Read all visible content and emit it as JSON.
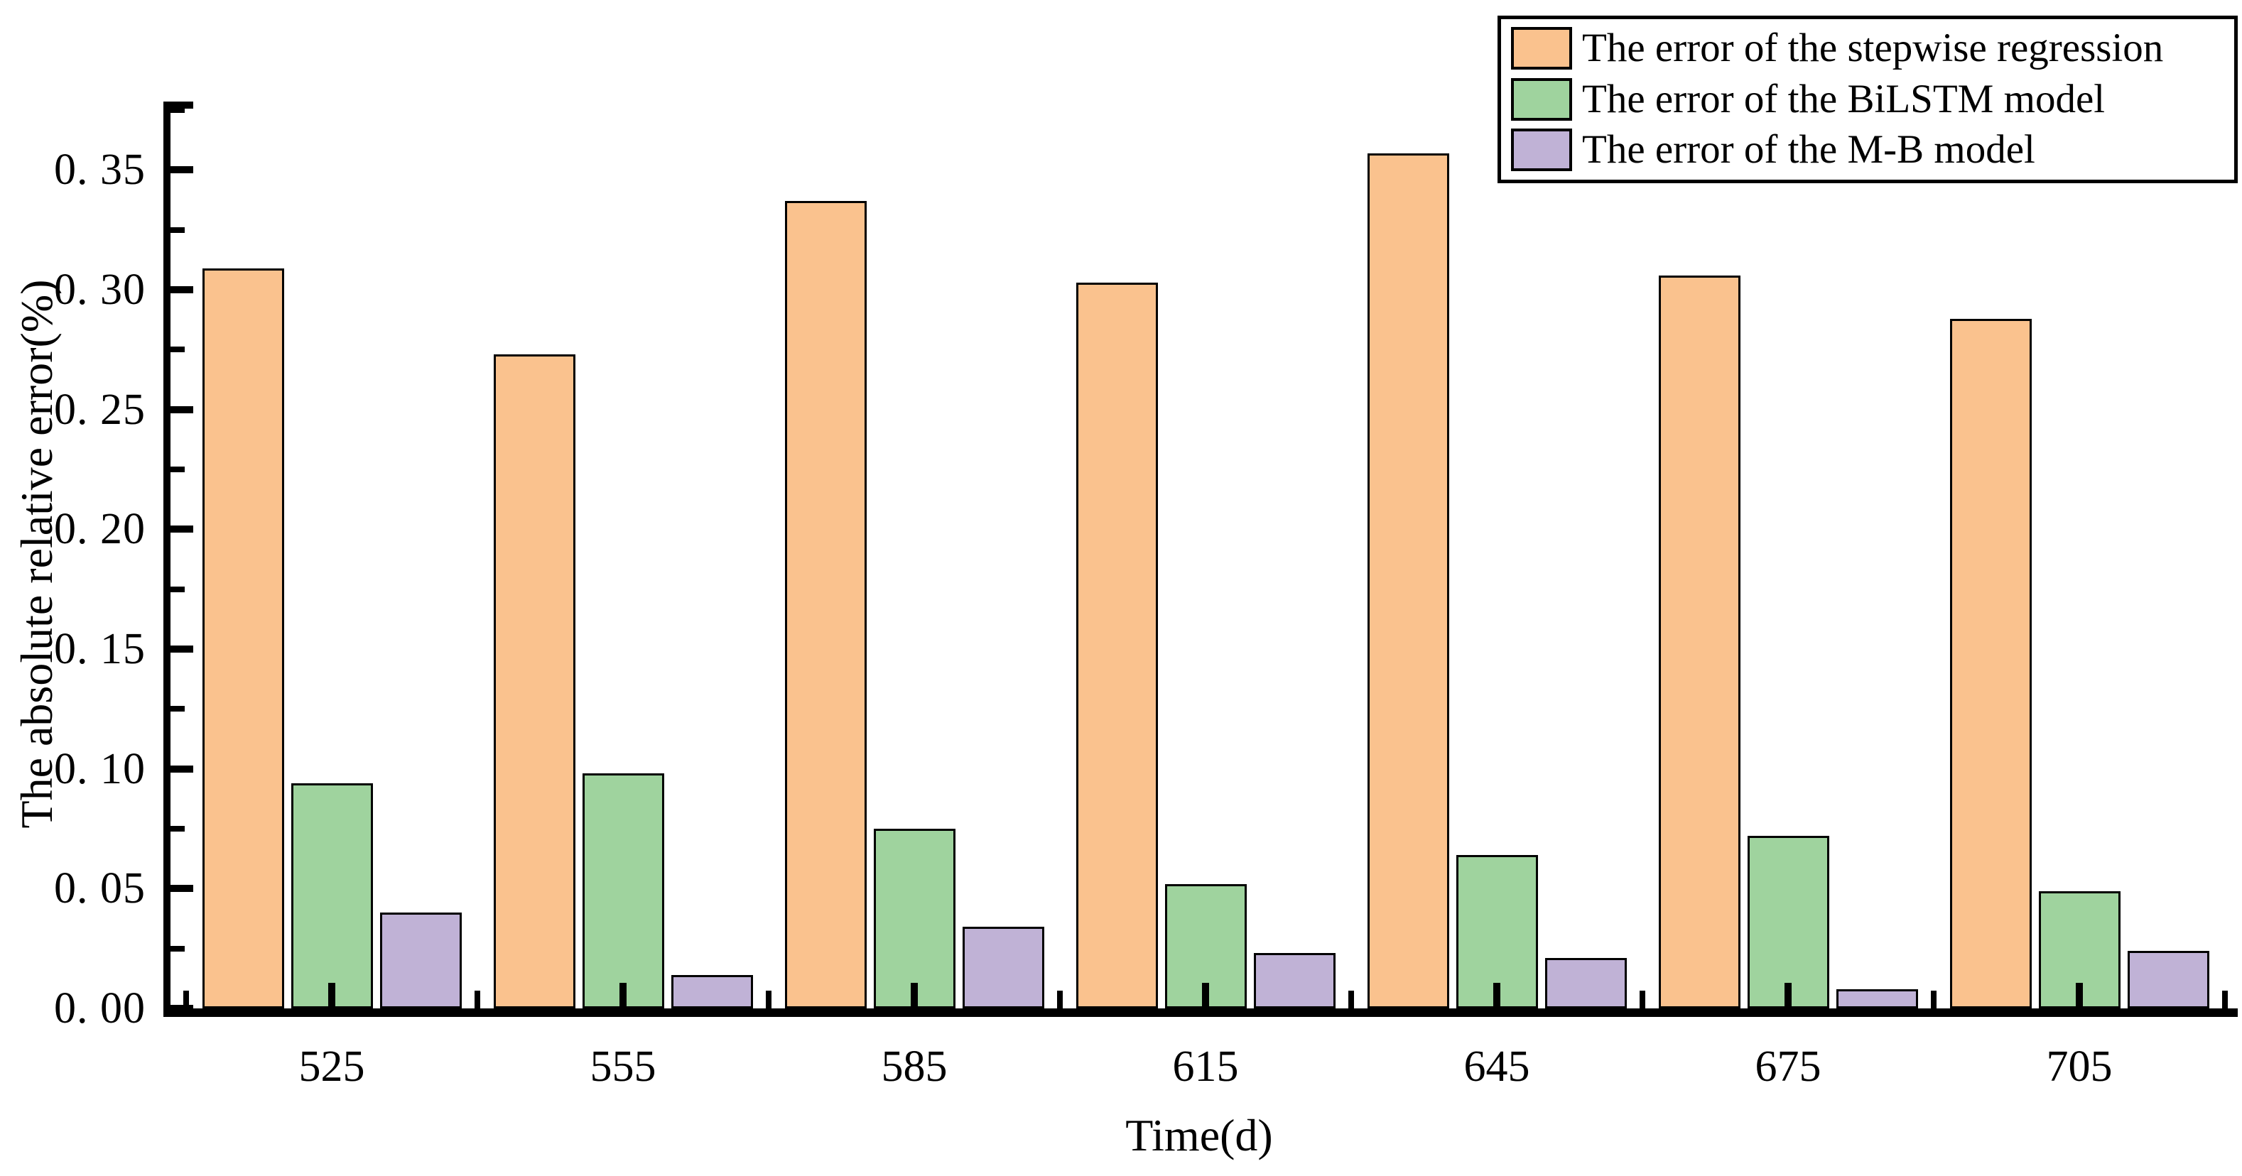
{
  "figure": {
    "background": "#ffffff",
    "text_color": "#000000"
  },
  "y_axis": {
    "title": "The absolute relative error(%)",
    "tick_labels": [
      "0. 35",
      "0. 30",
      "0. 25",
      "0. 20",
      "0. 15",
      "0. 10",
      "0. 05",
      "0. 00"
    ],
    "tick_values": [
      0.35,
      0.3,
      0.25,
      0.2,
      0.15,
      0.1,
      0.05,
      0.0
    ],
    "minor_tick_values": [
      0.375,
      0.325,
      0.275,
      0.225,
      0.175,
      0.125,
      0.075,
      0.025
    ]
  },
  "x_axis": {
    "title": "Time(d)",
    "tick_labels": [
      "525",
      "555",
      "585",
      "615",
      "645",
      "675",
      "705"
    ]
  },
  "legend": {
    "position": "top-right",
    "entries": [
      {
        "label": "The error of the stepwise regression",
        "color": "#FAC28E"
      },
      {
        "label": "The error of the BiLSTM model",
        "color": "#9FD39E"
      },
      {
        "label": "The error of the M-B model",
        "color": "#C0B2D6"
      }
    ]
  },
  "chart_data": {
    "type": "bar",
    "title": "",
    "xlabel": "Time(d)",
    "ylabel": "The absolute relative error(%)",
    "categories": [
      525,
      555,
      585,
      615,
      645,
      675,
      705
    ],
    "series": [
      {
        "name": "The error of the stepwise regression",
        "color": "#FAC28E",
        "values": [
          0.309,
          0.273,
          0.337,
          0.303,
          0.357,
          0.306,
          0.288
        ]
      },
      {
        "name": "The error of the BiLSTM model",
        "color": "#9FD39E",
        "values": [
          0.094,
          0.098,
          0.075,
          0.052,
          0.064,
          0.072,
          0.049
        ]
      },
      {
        "name": "The error of the M-B model",
        "color": "#C0B2D6",
        "values": [
          0.04,
          0.014,
          0.034,
          0.023,
          0.021,
          0.008,
          0.024
        ]
      }
    ],
    "ylim": [
      0,
      0.38
    ],
    "grid": false,
    "legend_position": "top-right",
    "tick_direction": "in"
  }
}
